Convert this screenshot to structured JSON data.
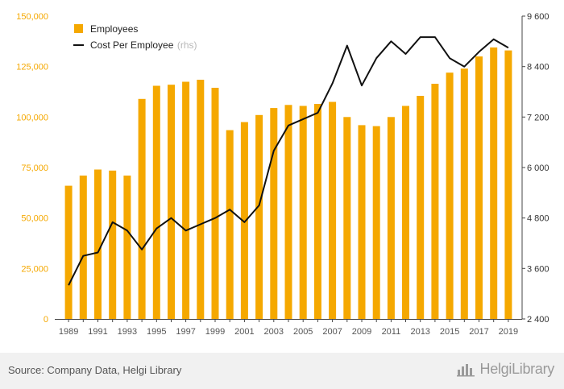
{
  "chart_data": {
    "type": "bar",
    "categories": [
      "1989",
      "1990",
      "1991",
      "1992",
      "1993",
      "1994",
      "1995",
      "1996",
      "1997",
      "1998",
      "1999",
      "2000",
      "2001",
      "2002",
      "2003",
      "2004",
      "2005",
      "2006",
      "2007",
      "2008",
      "2009",
      "2010",
      "2011",
      "2012",
      "2013",
      "2014",
      "2015",
      "2016",
      "2017",
      "2018",
      "2019"
    ],
    "x_tick_labels": [
      "1989",
      "1991",
      "1993",
      "1995",
      "1997",
      "1999",
      "2001",
      "2003",
      "2005",
      "2007",
      "2009",
      "2011",
      "2013",
      "2015",
      "2017",
      "2019"
    ],
    "series": [
      {
        "name": "Employees",
        "type": "bar",
        "axis": "left",
        "color": "#f5a800",
        "values": [
          66000,
          71000,
          74000,
          73500,
          71000,
          109000,
          115500,
          116000,
          117500,
          118500,
          114500,
          93500,
          97500,
          101000,
          104500,
          106000,
          105500,
          106500,
          107500,
          100000,
          96000,
          95500,
          100000,
          105500,
          110500,
          116500,
          122000,
          124000,
          130000,
          134500,
          133000
        ]
      },
      {
        "name": "Cost Per Employee",
        "name_suffix": "(rhs)",
        "type": "line",
        "axis": "right",
        "color": "#111111",
        "values": [
          3200,
          3900,
          3980,
          4700,
          4500,
          4050,
          4550,
          4800,
          4500,
          4650,
          4800,
          5000,
          4700,
          5100,
          6400,
          7000,
          7150,
          7300,
          8000,
          8900,
          7950,
          8600,
          9000,
          8700,
          9100,
          9100,
          8600,
          8400,
          8750,
          9050,
          8850
        ]
      }
    ],
    "y_left": {
      "min": 0,
      "max": 150000,
      "ticks": [
        0,
        25000,
        50000,
        75000,
        100000,
        125000,
        150000
      ],
      "tick_labels": [
        "0",
        "25,000",
        "50,000",
        "75,000",
        "100,000",
        "125,000",
        "150,000"
      ]
    },
    "y_right": {
      "min": 2400,
      "max": 9600,
      "ticks": [
        2400,
        3600,
        4800,
        6000,
        7200,
        8400,
        9600
      ],
      "tick_labels": [
        "2 400",
        "3 600",
        "4 800",
        "6 000",
        "7 200",
        "8 400",
        "9 600"
      ]
    },
    "grid": false,
    "legend_position": "top-left"
  },
  "footer": {
    "source": "Source: Company Data, Helgi Library",
    "brand": "HelgiLibrary",
    "brand_icon": "bar-chart-icon"
  }
}
